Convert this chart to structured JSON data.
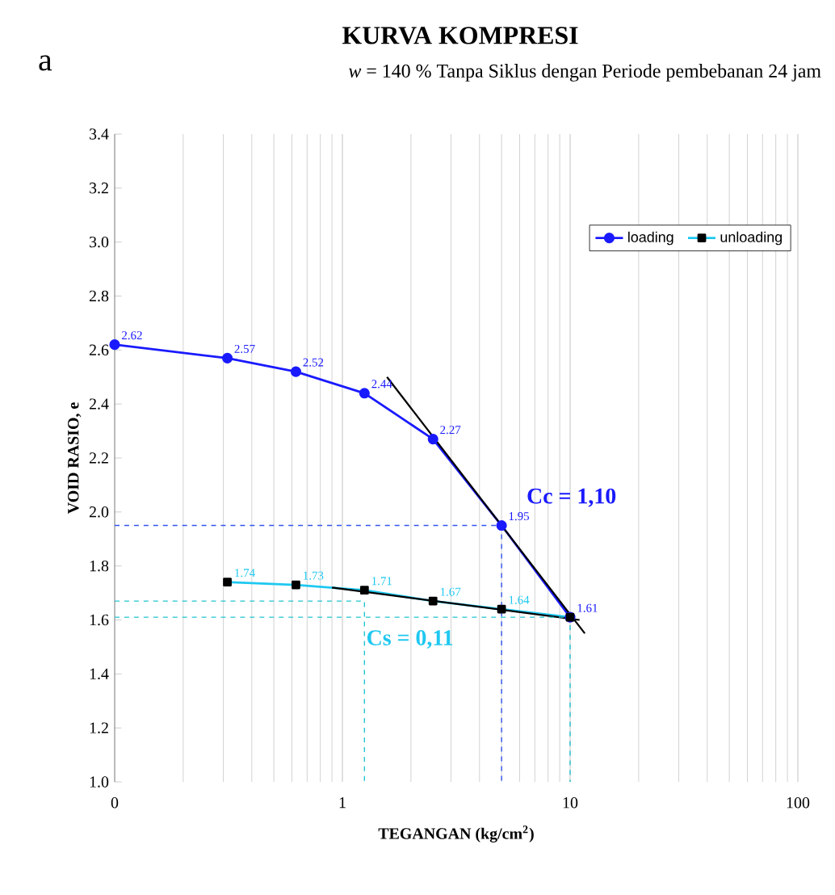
{
  "chart_data": {
    "type": "line",
    "title": "KURVA KOMPRESI",
    "subtitle": "*w* = 140 % Tanpa Siklus dengan Periode pembebanan 24 jam",
    "xlabel": "TEGANGAN (kg/cm$^{2}$)",
    "ylabel": "VOID RASIO, e",
    "log": "x",
    "grid": "x",
    "legend": "top right",
    "xlim": [
      0.1,
      100
    ],
    "xticks": [
      {
        "value": 0.1,
        "label": "0"
      },
      1,
      10,
      100
    ],
    "ylim": [
      1.0,
      3.4
    ],
    "yticks": [
      {
        "value": 1.0,
        "label": "1.0"
      },
      1.2,
      1.4,
      1.6,
      1.8,
      {
        "value": 2.0,
        "label": "2.0"
      },
      2.2,
      2.4,
      2.6,
      2.8,
      {
        "value": 3.0,
        "label": "3.0"
      },
      3.2,
      3.4
    ],
    "series": [
      {
        "name": "loading",
        "color": "#1a1aff",
        "marker": "circle",
        "x": [
          0.1,
          0.3125,
          0.625,
          1.25,
          2.5,
          5,
          10
        ],
        "values": [
          2.62,
          2.57,
          2.52,
          2.44,
          2.27,
          1.95,
          1.61
        ],
        "value_labels": [
          "2.62",
          "2.57",
          "2.52",
          "2.44",
          "2.27",
          "1.95",
          "1.61"
        ]
      },
      {
        "name": "unloading",
        "color": "#1ec8f0",
        "marker": "square",
        "x": [
          0.3125,
          0.625,
          1.25,
          2.5,
          5,
          10
        ],
        "values": [
          1.74,
          1.73,
          1.71,
          1.67,
          1.64,
          1.61
        ],
        "value_labels": [
          "1.74",
          "1.73",
          "1.71",
          "1.67",
          "1.64",
          null
        ]
      },
      {
        "color": "#000000",
        "marker": "none",
        "x": [
          1.57,
          11.6
        ],
        "values": [
          2.5,
          1.55
        ]
      },
      {
        "color": "#000000",
        "marker": "none",
        "x": [
          0.9,
          11
        ],
        "values": [
          1.72,
          1.6
        ]
      },
      {
        "color": "#3355ee",
        "marker": "none",
        "line_style": "dashed",
        "x": [
          0.1,
          5,
          5
        ],
        "values": [
          1.95,
          1.95,
          1.0
        ]
      },
      {
        "color": "#22c4d0",
        "marker": "none",
        "line_style": "dashed",
        "x": [
          0.1,
          1.25,
          1.25
        ],
        "values": [
          1.67,
          1.67,
          1.0
        ]
      },
      {
        "color": "#22c4d0",
        "marker": "none",
        "line_style": "dashed",
        "x": [
          0.1,
          10,
          10
        ],
        "values": [
          1.61,
          1.61,
          1.0
        ]
      }
    ],
    "annotations": [
      "a",
      {
        "text": "Cc = 1,10",
        "x": 5,
        "y": 1.95
      },
      "Cs = 0,11"
    ]
  }
}
